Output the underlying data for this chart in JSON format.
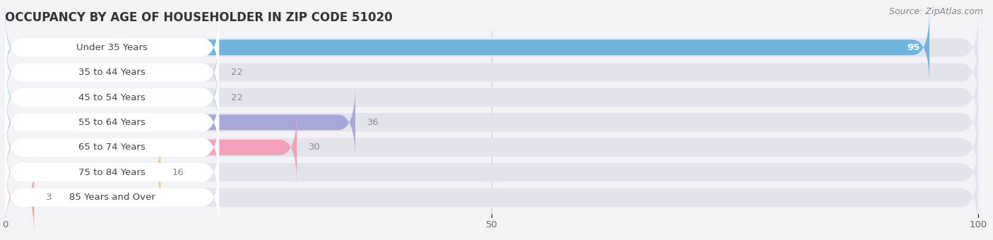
{
  "title": "OCCUPANCY BY AGE OF HOUSEHOLDER IN ZIP CODE 51020",
  "source": "Source: ZipAtlas.com",
  "categories": [
    "Under 35 Years",
    "35 to 44 Years",
    "45 to 54 Years",
    "55 to 64 Years",
    "65 to 74 Years",
    "75 to 84 Years",
    "85 Years and Over"
  ],
  "values": [
    95,
    22,
    22,
    36,
    30,
    16,
    3
  ],
  "bar_colors": [
    "#6eb5e0",
    "#c8a8d0",
    "#7ececa",
    "#a8a8d8",
    "#f4a0b8",
    "#f8c898",
    "#f0a8a0"
  ],
  "background_color": "#f2f2f7",
  "bar_bg_color": "#e4e4ec",
  "label_bg_color": "#ffffff",
  "xlim": [
    0,
    100
  ],
  "xticks": [
    0,
    50,
    100
  ],
  "value_label_color_inside": "#ffffff",
  "value_label_color_outside": "#888888",
  "title_fontsize": 12,
  "label_fontsize": 9.5,
  "tick_fontsize": 9.5,
  "source_fontsize": 9
}
